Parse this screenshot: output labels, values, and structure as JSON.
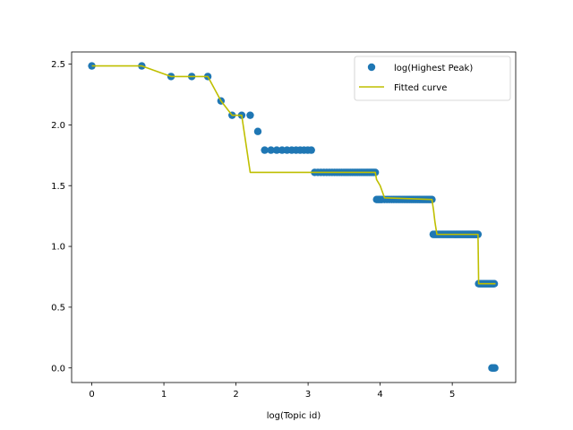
{
  "chart_data": {
    "type": "scatter",
    "title": "",
    "xlabel": "log(Topic id)",
    "ylabel": "",
    "xlim": [
      -0.28,
      5.88
    ],
    "ylim": [
      -0.12,
      2.6
    ],
    "xticks": [
      0,
      1,
      2,
      3,
      4,
      5
    ],
    "xtick_labels": [
      "0",
      "1",
      "2",
      "3",
      "4",
      "5"
    ],
    "yticks": [
      0.0,
      0.5,
      1.0,
      1.5,
      2.0,
      2.5
    ],
    "ytick_labels": [
      "0.0",
      "0.5",
      "1.0",
      "1.5",
      "2.0",
      "2.5"
    ],
    "grid": false,
    "legend_position": "top-right",
    "series": [
      {
        "name": "log(Highest Peak)",
        "kind": "scatter",
        "color": "#1f77b4",
        "points": [
          [
            0,
            2.485
          ],
          [
            0.693,
            2.485
          ],
          [
            1.099,
            2.398
          ],
          [
            1.386,
            2.398
          ],
          [
            1.609,
            2.398
          ],
          [
            1.792,
            2.197
          ],
          [
            1.946,
            2.079
          ],
          [
            2.079,
            2.079
          ],
          [
            2.197,
            2.079
          ],
          [
            2.303,
            1.946
          ],
          [
            2.398,
            1.792
          ],
          [
            2.485,
            1.792
          ],
          [
            2.565,
            1.792
          ],
          [
            2.639,
            1.792
          ],
          [
            2.708,
            1.792
          ],
          [
            2.773,
            1.792
          ],
          [
            2.833,
            1.792
          ],
          [
            2.89,
            1.792
          ],
          [
            2.944,
            1.792
          ],
          [
            2.996,
            1.792
          ],
          [
            3.045,
            1.792
          ],
          [
            3.091,
            1.609
          ],
          [
            3.136,
            1.609
          ],
          [
            3.178,
            1.609
          ],
          [
            3.219,
            1.609
          ],
          [
            3.258,
            1.609
          ],
          [
            3.296,
            1.609
          ],
          [
            3.332,
            1.609
          ],
          [
            3.367,
            1.609
          ],
          [
            3.401,
            1.609
          ],
          [
            3.434,
            1.609
          ],
          [
            3.466,
            1.609
          ],
          [
            3.497,
            1.609
          ],
          [
            3.526,
            1.609
          ],
          [
            3.555,
            1.609
          ],
          [
            3.584,
            1.609
          ],
          [
            3.611,
            1.609
          ],
          [
            3.638,
            1.609
          ],
          [
            3.664,
            1.609
          ],
          [
            3.689,
            1.609
          ],
          [
            3.714,
            1.609
          ],
          [
            3.738,
            1.609
          ],
          [
            3.761,
            1.609
          ],
          [
            3.784,
            1.609
          ],
          [
            3.807,
            1.609
          ],
          [
            3.829,
            1.609
          ],
          [
            3.85,
            1.609
          ],
          [
            3.871,
            1.609
          ],
          [
            3.892,
            1.609
          ],
          [
            3.912,
            1.609
          ],
          [
            3.932,
            1.609
          ],
          [
            3.951,
            1.386
          ],
          [
            3.97,
            1.386
          ],
          [
            3.989,
            1.386
          ],
          [
            4.007,
            1.386
          ],
          [
            4.025,
            1.386
          ],
          [
            4.06,
            1.386
          ],
          [
            4.094,
            1.386
          ],
          [
            4.127,
            1.386
          ],
          [
            4.159,
            1.386
          ],
          [
            4.19,
            1.386
          ],
          [
            4.22,
            1.386
          ],
          [
            4.25,
            1.386
          ],
          [
            4.277,
            1.386
          ],
          [
            4.304,
            1.386
          ],
          [
            4.331,
            1.386
          ],
          [
            4.357,
            1.386
          ],
          [
            4.382,
            1.386
          ],
          [
            4.407,
            1.386
          ],
          [
            4.431,
            1.386
          ],
          [
            4.454,
            1.386
          ],
          [
            4.477,
            1.386
          ],
          [
            4.5,
            1.386
          ],
          [
            4.522,
            1.386
          ],
          [
            4.543,
            1.386
          ],
          [
            4.564,
            1.386
          ],
          [
            4.585,
            1.386
          ],
          [
            4.605,
            1.386
          ],
          [
            4.625,
            1.386
          ],
          [
            4.644,
            1.386
          ],
          [
            4.663,
            1.386
          ],
          [
            4.682,
            1.386
          ],
          [
            4.7,
            1.386
          ],
          [
            4.718,
            1.386
          ],
          [
            4.736,
            1.099
          ],
          [
            4.754,
            1.099
          ],
          [
            4.771,
            1.099
          ],
          [
            4.787,
            1.099
          ],
          [
            4.804,
            1.099
          ],
          [
            4.82,
            1.099
          ],
          [
            4.836,
            1.099
          ],
          [
            4.852,
            1.099
          ],
          [
            4.868,
            1.099
          ],
          [
            4.883,
            1.099
          ],
          [
            4.898,
            1.099
          ],
          [
            4.913,
            1.099
          ],
          [
            4.927,
            1.099
          ],
          [
            4.942,
            1.099
          ],
          [
            4.956,
            1.099
          ],
          [
            4.97,
            1.099
          ],
          [
            4.984,
            1.099
          ],
          [
            4.997,
            1.099
          ],
          [
            5.011,
            1.099
          ],
          [
            5.024,
            1.099
          ],
          [
            5.037,
            1.099
          ],
          [
            5.05,
            1.099
          ],
          [
            5.063,
            1.099
          ],
          [
            5.075,
            1.099
          ],
          [
            5.088,
            1.099
          ],
          [
            5.1,
            1.099
          ],
          [
            5.112,
            1.099
          ],
          [
            5.124,
            1.099
          ],
          [
            5.136,
            1.099
          ],
          [
            5.147,
            1.099
          ],
          [
            5.159,
            1.099
          ],
          [
            5.17,
            1.099
          ],
          [
            5.182,
            1.099
          ],
          [
            5.193,
            1.099
          ],
          [
            5.204,
            1.099
          ],
          [
            5.215,
            1.099
          ],
          [
            5.226,
            1.099
          ],
          [
            5.236,
            1.099
          ],
          [
            5.247,
            1.099
          ],
          [
            5.257,
            1.099
          ],
          [
            5.268,
            1.099
          ],
          [
            5.278,
            1.099
          ],
          [
            5.288,
            1.099
          ],
          [
            5.298,
            1.099
          ],
          [
            5.308,
            1.099
          ],
          [
            5.318,
            1.099
          ],
          [
            5.328,
            1.099
          ],
          [
            5.338,
            1.099
          ],
          [
            5.347,
            1.099
          ],
          [
            5.357,
            1.099
          ],
          [
            5.366,
            0.693
          ],
          [
            5.375,
            0.693
          ],
          [
            5.384,
            0.693
          ],
          [
            5.394,
            0.693
          ],
          [
            5.403,
            0.693
          ],
          [
            5.412,
            0.693
          ],
          [
            5.42,
            0.693
          ],
          [
            5.429,
            0.693
          ],
          [
            5.438,
            0.693
          ],
          [
            5.447,
            0.693
          ],
          [
            5.455,
            0.693
          ],
          [
            5.464,
            0.693
          ],
          [
            5.472,
            0.693
          ],
          [
            5.48,
            0.693
          ],
          [
            5.489,
            0.693
          ],
          [
            5.497,
            0.693
          ],
          [
            5.505,
            0.693
          ],
          [
            5.513,
            0.693
          ],
          [
            5.521,
            0.693
          ],
          [
            5.529,
            0.693
          ],
          [
            5.537,
            0.693
          ],
          [
            5.545,
            0.693
          ],
          [
            5.553,
            0.693
          ],
          [
            5.561,
            0.693
          ],
          [
            5.568,
            0.693
          ],
          [
            5.576,
            0.693
          ],
          [
            5.583,
            0.693
          ],
          [
            5.55,
            0.0
          ],
          [
            5.56,
            0.0
          ],
          [
            5.57,
            0.0
          ],
          [
            5.58,
            0.0
          ],
          [
            5.59,
            0.0
          ]
        ]
      },
      {
        "name": "Fitted curve",
        "kind": "line",
        "color": "#bfbf00",
        "points": [
          [
            0,
            2.485
          ],
          [
            0.693,
            2.485
          ],
          [
            1.099,
            2.398
          ],
          [
            1.386,
            2.398
          ],
          [
            1.609,
            2.398
          ],
          [
            1.792,
            2.197
          ],
          [
            1.946,
            2.079
          ],
          [
            2.079,
            2.079
          ],
          [
            2.197,
            1.609
          ],
          [
            3.0,
            1.609
          ],
          [
            3.932,
            1.609
          ],
          [
            3.95,
            1.55
          ],
          [
            4.0,
            1.5
          ],
          [
            4.03,
            1.45
          ],
          [
            4.06,
            1.4
          ],
          [
            4.718,
            1.386
          ],
          [
            4.74,
            1.3
          ],
          [
            4.76,
            1.2
          ],
          [
            4.787,
            1.099
          ],
          [
            5.0,
            1.099
          ],
          [
            5.357,
            1.099
          ],
          [
            5.366,
            0.693
          ],
          [
            5.6,
            0.693
          ]
        ]
      }
    ]
  }
}
